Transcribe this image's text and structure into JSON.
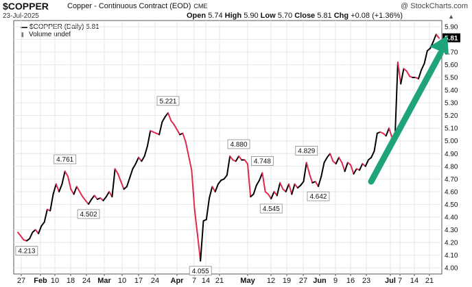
{
  "header": {
    "symbol": "$COPPER",
    "name": "Copper - Continuous Contract (EOD)",
    "exchange": "CME",
    "brand": "@ StockCharts.com",
    "date": "23-Jul-2025",
    "open_label": "Open",
    "open": "5.74",
    "high_label": "High",
    "high": "5.90",
    "low_label": "Low",
    "low": "5.70",
    "close_label": "Close",
    "close": "5.81",
    "chg_label": "Chg",
    "chg": "+0.08 (+1.36%)"
  },
  "legend": {
    "series": "$COPPER (Daily) 5.81",
    "volume": "Volume undef"
  },
  "colors": {
    "up_line": "#000000",
    "down_line": "#e0284f",
    "arrow": "#1fa37a",
    "grid": "#e6e6e6",
    "last_value_box": "#000000"
  },
  "chart_data": {
    "type": "line",
    "ylim": [
      4.0,
      5.9
    ],
    "yticks": [
      "5.90",
      "5.80",
      "5.70",
      "5.60",
      "5.50",
      "5.40",
      "5.30",
      "5.20",
      "5.10",
      "5.00",
      "4.90",
      "4.80",
      "4.70",
      "4.60",
      "4.50",
      "4.40",
      "4.30",
      "4.20",
      "4.10",
      "4.00"
    ],
    "x_ticks": [
      {
        "label": "27",
        "bold": false
      },
      {
        "label": "Feb",
        "bold": true
      },
      {
        "label": "10",
        "bold": false
      },
      {
        "label": "18",
        "bold": false
      },
      {
        "label": "24",
        "bold": false
      },
      {
        "label": "Mar",
        "bold": true
      },
      {
        "label": "10",
        "bold": false
      },
      {
        "label": "17",
        "bold": false
      },
      {
        "label": "24",
        "bold": false
      },
      {
        "label": "Apr",
        "bold": true
      },
      {
        "label": "7",
        "bold": false
      },
      {
        "label": "14",
        "bold": false
      },
      {
        "label": "21",
        "bold": false
      },
      {
        "label": "May",
        "bold": true
      },
      {
        "label": "12",
        "bold": false
      },
      {
        "label": "19",
        "bold": false
      },
      {
        "label": "27",
        "bold": false
      },
      {
        "label": "Jun",
        "bold": true
      },
      {
        "label": "9",
        "bold": false
      },
      {
        "label": "16",
        "bold": false
      },
      {
        "label": "23",
        "bold": false
      },
      {
        "label": "Jul",
        "bold": true
      },
      {
        "label": "7",
        "bold": false
      },
      {
        "label": "14",
        "bold": false
      },
      {
        "label": "21",
        "bold": false
      }
    ],
    "series": [
      {
        "values": [
          4.28,
          4.25,
          4.22,
          4.213,
          4.23,
          4.28,
          4.3,
          4.27,
          4.33,
          4.36,
          4.46,
          4.45,
          4.58,
          4.66,
          4.6,
          4.66,
          4.761,
          4.72,
          4.62,
          4.58,
          4.64,
          4.6,
          4.56,
          4.53,
          4.502,
          4.54,
          4.57,
          4.54,
          4.55,
          4.53,
          4.56,
          4.6,
          4.56,
          4.78,
          4.74,
          4.68,
          4.62,
          4.64,
          4.71,
          4.78,
          4.82,
          4.87,
          4.84,
          4.88,
          4.96,
          5.08,
          5.07,
          5.06,
          5.05,
          5.15,
          5.19,
          5.221,
          5.16,
          5.13,
          5.09,
          5.05,
          5.06,
          4.99,
          4.88,
          4.77,
          4.46,
          4.26,
          4.055,
          4.37,
          4.38,
          4.55,
          4.64,
          4.6,
          4.66,
          4.69,
          4.7,
          4.73,
          4.88,
          4.85,
          4.84,
          4.88,
          4.85,
          4.85,
          4.82,
          4.56,
          4.58,
          4.65,
          4.69,
          4.748,
          4.6,
          4.58,
          4.545,
          4.6,
          4.57,
          4.67,
          4.62,
          4.6,
          4.66,
          4.58,
          4.66,
          4.63,
          4.65,
          4.68,
          4.829,
          4.74,
          4.67,
          4.68,
          4.642,
          4.72,
          4.83,
          4.87,
          4.9,
          4.84,
          4.82,
          4.87,
          4.83,
          4.76,
          4.83,
          4.81,
          4.74,
          4.78,
          4.77,
          4.82,
          4.8,
          4.85,
          4.87,
          4.92,
          5.06,
          5.07,
          5.06,
          5.04,
          5.1,
          5.03,
          5.0,
          5.62,
          5.45,
          5.57,
          5.55,
          5.51,
          5.5,
          5.5,
          5.49,
          5.56,
          5.61,
          5.71,
          5.73,
          5.78,
          5.84,
          5.81
        ]
      }
    ],
    "data_labels": [
      {
        "index": 3,
        "text": "4.213",
        "pos": "below"
      },
      {
        "index": 16,
        "text": "4.761",
        "pos": "above"
      },
      {
        "index": 24,
        "text": "4.502",
        "pos": "below"
      },
      {
        "index": 51,
        "text": "5.221",
        "pos": "above"
      },
      {
        "index": 62,
        "text": "4.055",
        "pos": "below"
      },
      {
        "index": 75,
        "text": "4.880",
        "pos": "above"
      },
      {
        "index": 83,
        "text": "4.748",
        "pos": "above"
      },
      {
        "index": 86,
        "text": "4.545",
        "pos": "below"
      },
      {
        "index": 98,
        "text": "4.829",
        "pos": "above"
      },
      {
        "index": 102,
        "text": "4.642",
        "pos": "below"
      }
    ],
    "last_value": "5.81",
    "annotations": [
      {
        "type": "arrow",
        "direction": "up-right"
      }
    ],
    "grid": true
  }
}
